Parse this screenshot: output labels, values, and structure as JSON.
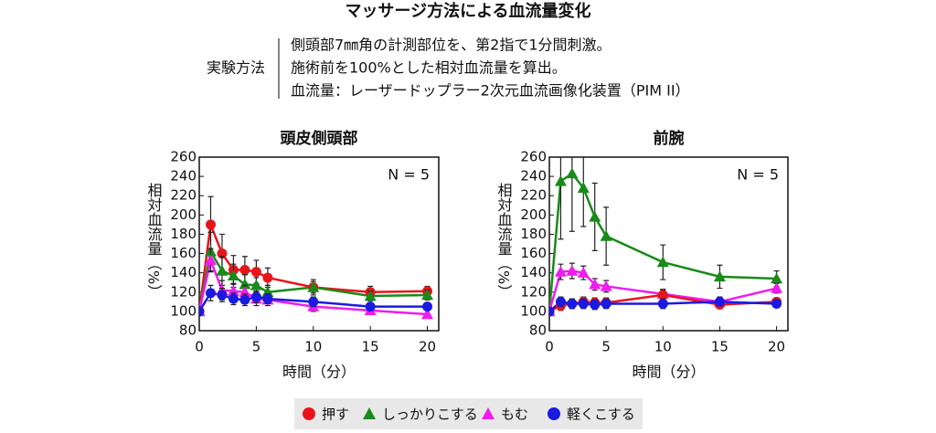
{
  "title": "マッサージ方法による血流量変化",
  "method": {
    "label": "実験方法",
    "lines": [
      "側頭部7㎜角の計測部位を、第2指で1分間刺激。",
      "施術前を100%とした相対血流量を算出。",
      "血流量：レーザードップラー2次元血流画像化装置（PIM II）"
    ]
  },
  "chart_data": [
    {
      "type": "line",
      "title": "頭皮側頭部",
      "annotation": "N = 5",
      "x_label": "時間（分）",
      "y_label": "相対血流量（%）",
      "x": [
        0,
        1,
        2,
        3,
        4,
        5,
        6,
        10,
        15,
        20
      ],
      "xlim": [
        0,
        21
      ],
      "xticks": [
        0,
        5,
        10,
        15,
        20
      ],
      "ylim": [
        80,
        260
      ],
      "yticks": [
        80,
        100,
        120,
        140,
        160,
        180,
        200,
        220,
        240,
        260
      ],
      "series": [
        {
          "name": "押す",
          "color": "#e8141c",
          "marker": "circle",
          "values": [
            100,
            190,
            160,
            143,
            143,
            141,
            135,
            125,
            120,
            121
          ],
          "errors": [
            0,
            29,
            20,
            15,
            14,
            12,
            10,
            8,
            6,
            5
          ]
        },
        {
          "name": "しっかりこする",
          "color": "#1a8a1a",
          "marker": "triangle",
          "values": [
            100,
            162,
            142,
            137,
            128,
            127,
            120,
            125,
            116,
            117
          ],
          "errors": [
            0,
            20,
            15,
            12,
            10,
            8,
            7,
            6,
            5,
            5
          ]
        },
        {
          "name": "もむ",
          "color": "#ee1cee",
          "marker": "triangle",
          "values": [
            100,
            153,
            122,
            121,
            120,
            113,
            112,
            105,
            101,
            97
          ],
          "errors": [
            0,
            12,
            10,
            8,
            7,
            7,
            6,
            5,
            4,
            4
          ]
        },
        {
          "name": "軽くこする",
          "color": "#1a1ae0",
          "marker": "circle",
          "values": [
            100,
            119,
            117,
            113,
            112,
            115,
            113,
            110,
            105,
            105
          ],
          "errors": [
            0,
            8,
            7,
            6,
            6,
            6,
            5,
            5,
            4,
            4
          ]
        }
      ]
    },
    {
      "type": "line",
      "title": "前腕",
      "annotation": "N = 5",
      "x_label": "時間（分）",
      "y_label": "相対血流量（%）",
      "x": [
        0,
        1,
        2,
        3,
        4,
        5,
        10,
        15,
        20
      ],
      "xlim": [
        0,
        21
      ],
      "xticks": [
        0,
        5,
        10,
        15,
        20
      ],
      "ylim": [
        80,
        260
      ],
      "yticks": [
        80,
        100,
        120,
        140,
        160,
        180,
        200,
        220,
        240,
        260
      ],
      "series": [
        {
          "color": "#1a8a1a",
          "marker": "triangle",
          "values": [
            100,
            235,
            243,
            228,
            198,
            178,
            151,
            136,
            134
          ],
          "errors": [
            0,
            60,
            60,
            40,
            35,
            30,
            18,
            12,
            8
          ]
        },
        {
          "color": "#ee1cee",
          "marker": "triangle",
          "values": [
            100,
            141,
            142,
            140,
            128,
            126,
            118,
            110,
            124
          ],
          "errors": [
            0,
            8,
            8,
            7,
            6,
            6,
            5,
            5,
            5
          ]
        },
        {
          "color": "#e8141c",
          "marker": "circle",
          "values": [
            100,
            106,
            108,
            110,
            109,
            109,
            117,
            107,
            110
          ],
          "errors": [
            0,
            5,
            5,
            5,
            5,
            5,
            5,
            4,
            4
          ]
        },
        {
          "color": "#1a1ae0",
          "marker": "circle",
          "values": [
            100,
            110,
            108,
            108,
            107,
            108,
            108,
            110,
            108
          ],
          "errors": [
            0,
            5,
            5,
            5,
            5,
            5,
            5,
            4,
            4
          ]
        }
      ]
    }
  ]
}
